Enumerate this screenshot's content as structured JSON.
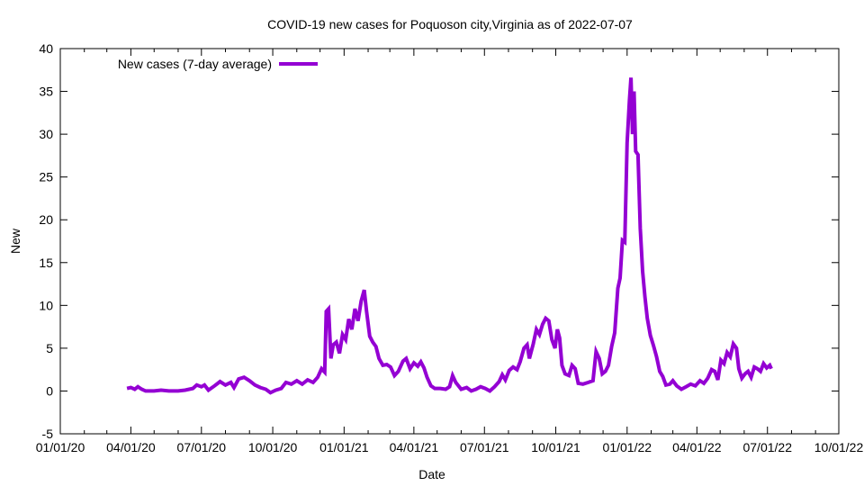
{
  "chart_data": {
    "type": "line",
    "title": "COVID-19 new cases for Poquoson city,Virginia as of 2022-07-07",
    "xlabel": "Date",
    "ylabel": "New",
    "xlim": [
      "2020-01-01",
      "2022-10-01"
    ],
    "ylim": [
      -5,
      40
    ],
    "grid": false,
    "legend_position": "top-left",
    "x_tick_labels": [
      "01/01/20",
      "04/01/20",
      "07/01/20",
      "10/01/20",
      "01/01/21",
      "04/01/21",
      "07/01/21",
      "10/01/21",
      "01/01/22",
      "04/01/22",
      "07/01/22",
      "10/01/22"
    ],
    "x_tick_dates": [
      "2020-01-01",
      "2020-04-01",
      "2020-07-01",
      "2020-10-01",
      "2021-01-01",
      "2021-04-01",
      "2021-07-01",
      "2021-10-01",
      "2022-01-01",
      "2022-04-01",
      "2022-07-01",
      "2022-10-01"
    ],
    "y_ticks": [
      -5,
      0,
      5,
      10,
      15,
      20,
      25,
      30,
      35,
      40
    ],
    "series": [
      {
        "name": "New cases (7-day average)",
        "color": "#9400d3",
        "points": [
          [
            "2020-03-27",
            0.3
          ],
          [
            "2020-04-01",
            0.4
          ],
          [
            "2020-04-06",
            0.2
          ],
          [
            "2020-04-10",
            0.5
          ],
          [
            "2020-04-15",
            0.2
          ],
          [
            "2020-04-20",
            0.0
          ],
          [
            "2020-05-01",
            0.0
          ],
          [
            "2020-05-10",
            0.1
          ],
          [
            "2020-05-20",
            0.0
          ],
          [
            "2020-06-01",
            0.0
          ],
          [
            "2020-06-10",
            0.1
          ],
          [
            "2020-06-20",
            0.3
          ],
          [
            "2020-06-25",
            0.7
          ],
          [
            "2020-07-01",
            0.5
          ],
          [
            "2020-07-05",
            0.7
          ],
          [
            "2020-07-10",
            0.1
          ],
          [
            "2020-07-18",
            0.6
          ],
          [
            "2020-07-25",
            1.1
          ],
          [
            "2020-08-01",
            0.7
          ],
          [
            "2020-08-08",
            1.0
          ],
          [
            "2020-08-12",
            0.4
          ],
          [
            "2020-08-18",
            1.4
          ],
          [
            "2020-08-25",
            1.6
          ],
          [
            "2020-09-01",
            1.2
          ],
          [
            "2020-09-08",
            0.7
          ],
          [
            "2020-09-15",
            0.4
          ],
          [
            "2020-09-22",
            0.2
          ],
          [
            "2020-09-28",
            -0.2
          ],
          [
            "2020-10-05",
            0.1
          ],
          [
            "2020-10-12",
            0.3
          ],
          [
            "2020-10-18",
            1.0
          ],
          [
            "2020-10-25",
            0.8
          ],
          [
            "2020-11-01",
            1.2
          ],
          [
            "2020-11-08",
            0.8
          ],
          [
            "2020-11-15",
            1.3
          ],
          [
            "2020-11-22",
            1.0
          ],
          [
            "2020-11-28",
            1.6
          ],
          [
            "2020-12-03",
            2.6
          ],
          [
            "2020-12-07",
            2.2
          ],
          [
            "2020-12-09",
            9.3
          ],
          [
            "2020-12-12",
            9.6
          ],
          [
            "2020-12-15",
            3.8
          ],
          [
            "2020-12-18",
            5.4
          ],
          [
            "2020-12-22",
            5.7
          ],
          [
            "2020-12-26",
            4.4
          ],
          [
            "2020-12-30",
            6.6
          ],
          [
            "2021-01-03",
            6.0
          ],
          [
            "2021-01-07",
            8.4
          ],
          [
            "2021-01-11",
            7.2
          ],
          [
            "2021-01-15",
            9.6
          ],
          [
            "2021-01-19",
            8.2
          ],
          [
            "2021-01-23",
            10.5
          ],
          [
            "2021-01-27",
            11.8
          ],
          [
            "2021-01-30",
            9.3
          ],
          [
            "2021-02-03",
            6.4
          ],
          [
            "2021-02-07",
            5.7
          ],
          [
            "2021-02-11",
            5.2
          ],
          [
            "2021-02-15",
            3.8
          ],
          [
            "2021-02-20",
            3.0
          ],
          [
            "2021-02-25",
            3.1
          ],
          [
            "2021-03-02",
            2.8
          ],
          [
            "2021-03-07",
            1.8
          ],
          [
            "2021-03-12",
            2.3
          ],
          [
            "2021-03-18",
            3.5
          ],
          [
            "2021-03-22",
            3.8
          ],
          [
            "2021-03-27",
            2.6
          ],
          [
            "2021-04-01",
            3.3
          ],
          [
            "2021-04-06",
            2.9
          ],
          [
            "2021-04-10",
            3.4
          ],
          [
            "2021-04-14",
            2.7
          ],
          [
            "2021-04-18",
            1.6
          ],
          [
            "2021-04-23",
            0.6
          ],
          [
            "2021-04-28",
            0.3
          ],
          [
            "2021-05-05",
            0.3
          ],
          [
            "2021-05-12",
            0.2
          ],
          [
            "2021-05-17",
            0.5
          ],
          [
            "2021-05-21",
            1.8
          ],
          [
            "2021-05-25",
            1.0
          ],
          [
            "2021-06-01",
            0.2
          ],
          [
            "2021-06-08",
            0.4
          ],
          [
            "2021-06-14",
            0.0
          ],
          [
            "2021-06-20",
            0.2
          ],
          [
            "2021-06-26",
            0.5
          ],
          [
            "2021-07-02",
            0.3
          ],
          [
            "2021-07-08",
            0.0
          ],
          [
            "2021-07-14",
            0.5
          ],
          [
            "2021-07-20",
            1.1
          ],
          [
            "2021-07-24",
            1.9
          ],
          [
            "2021-07-28",
            1.3
          ],
          [
            "2021-08-02",
            2.4
          ],
          [
            "2021-08-07",
            2.8
          ],
          [
            "2021-08-12",
            2.5
          ],
          [
            "2021-08-16",
            3.4
          ],
          [
            "2021-08-21",
            5.0
          ],
          [
            "2021-08-25",
            5.4
          ],
          [
            "2021-08-28",
            3.8
          ],
          [
            "2021-09-02",
            5.5
          ],
          [
            "2021-09-06",
            7.2
          ],
          [
            "2021-09-10",
            6.6
          ],
          [
            "2021-09-14",
            7.8
          ],
          [
            "2021-09-18",
            8.5
          ],
          [
            "2021-09-22",
            8.2
          ],
          [
            "2021-09-26",
            6.0
          ],
          [
            "2021-09-30",
            5.0
          ],
          [
            "2021-10-03",
            7.2
          ],
          [
            "2021-10-06",
            6.2
          ],
          [
            "2021-10-09",
            3.0
          ],
          [
            "2021-10-13",
            2.0
          ],
          [
            "2021-10-18",
            1.8
          ],
          [
            "2021-10-22",
            3.0
          ],
          [
            "2021-10-26",
            2.6
          ],
          [
            "2021-10-30",
            0.9
          ],
          [
            "2021-11-05",
            0.8
          ],
          [
            "2021-11-12",
            1.0
          ],
          [
            "2021-11-18",
            1.2
          ],
          [
            "2021-11-22",
            4.6
          ],
          [
            "2021-11-26",
            3.8
          ],
          [
            "2021-11-30",
            2.0
          ],
          [
            "2021-12-04",
            2.3
          ],
          [
            "2021-12-08",
            3.0
          ],
          [
            "2021-12-12",
            5.2
          ],
          [
            "2021-12-16",
            6.8
          ],
          [
            "2021-12-20",
            12.0
          ],
          [
            "2021-12-23",
            13.2
          ],
          [
            "2021-12-26",
            17.6
          ],
          [
            "2021-12-29",
            17.4
          ],
          [
            "2022-01-01",
            29.0
          ],
          [
            "2022-01-04",
            34.0
          ],
          [
            "2022-01-06",
            36.6
          ],
          [
            "2022-01-08",
            30.0
          ],
          [
            "2022-01-10",
            35.0
          ],
          [
            "2022-01-12",
            28.0
          ],
          [
            "2022-01-15",
            27.6
          ],
          [
            "2022-01-18",
            19.0
          ],
          [
            "2022-01-21",
            14.0
          ],
          [
            "2022-01-24",
            11.0
          ],
          [
            "2022-01-27",
            8.5
          ],
          [
            "2022-01-31",
            6.5
          ],
          [
            "2022-02-04",
            5.3
          ],
          [
            "2022-02-08",
            4.0
          ],
          [
            "2022-02-12",
            2.3
          ],
          [
            "2022-02-16",
            1.7
          ],
          [
            "2022-02-20",
            0.7
          ],
          [
            "2022-02-25",
            0.8
          ],
          [
            "2022-03-01",
            1.2
          ],
          [
            "2022-03-06",
            0.6
          ],
          [
            "2022-03-12",
            0.2
          ],
          [
            "2022-03-18",
            0.5
          ],
          [
            "2022-03-24",
            0.8
          ],
          [
            "2022-03-30",
            0.6
          ],
          [
            "2022-04-05",
            1.2
          ],
          [
            "2022-04-10",
            0.9
          ],
          [
            "2022-04-15",
            1.5
          ],
          [
            "2022-04-20",
            2.5
          ],
          [
            "2022-04-24",
            2.3
          ],
          [
            "2022-04-28",
            1.3
          ],
          [
            "2022-05-02",
            3.6
          ],
          [
            "2022-05-06",
            3.2
          ],
          [
            "2022-05-10",
            4.5
          ],
          [
            "2022-05-14",
            4.0
          ],
          [
            "2022-05-18",
            5.5
          ],
          [
            "2022-05-22",
            5.0
          ],
          [
            "2022-05-25",
            2.6
          ],
          [
            "2022-05-29",
            1.5
          ],
          [
            "2022-06-02",
            2.0
          ],
          [
            "2022-06-06",
            2.3
          ],
          [
            "2022-06-10",
            1.6
          ],
          [
            "2022-06-14",
            2.8
          ],
          [
            "2022-06-18",
            2.6
          ],
          [
            "2022-06-22",
            2.3
          ],
          [
            "2022-06-26",
            3.2
          ],
          [
            "2022-06-30",
            2.7
          ],
          [
            "2022-07-04",
            3.0
          ],
          [
            "2022-07-06",
            2.6
          ]
        ]
      }
    ]
  }
}
